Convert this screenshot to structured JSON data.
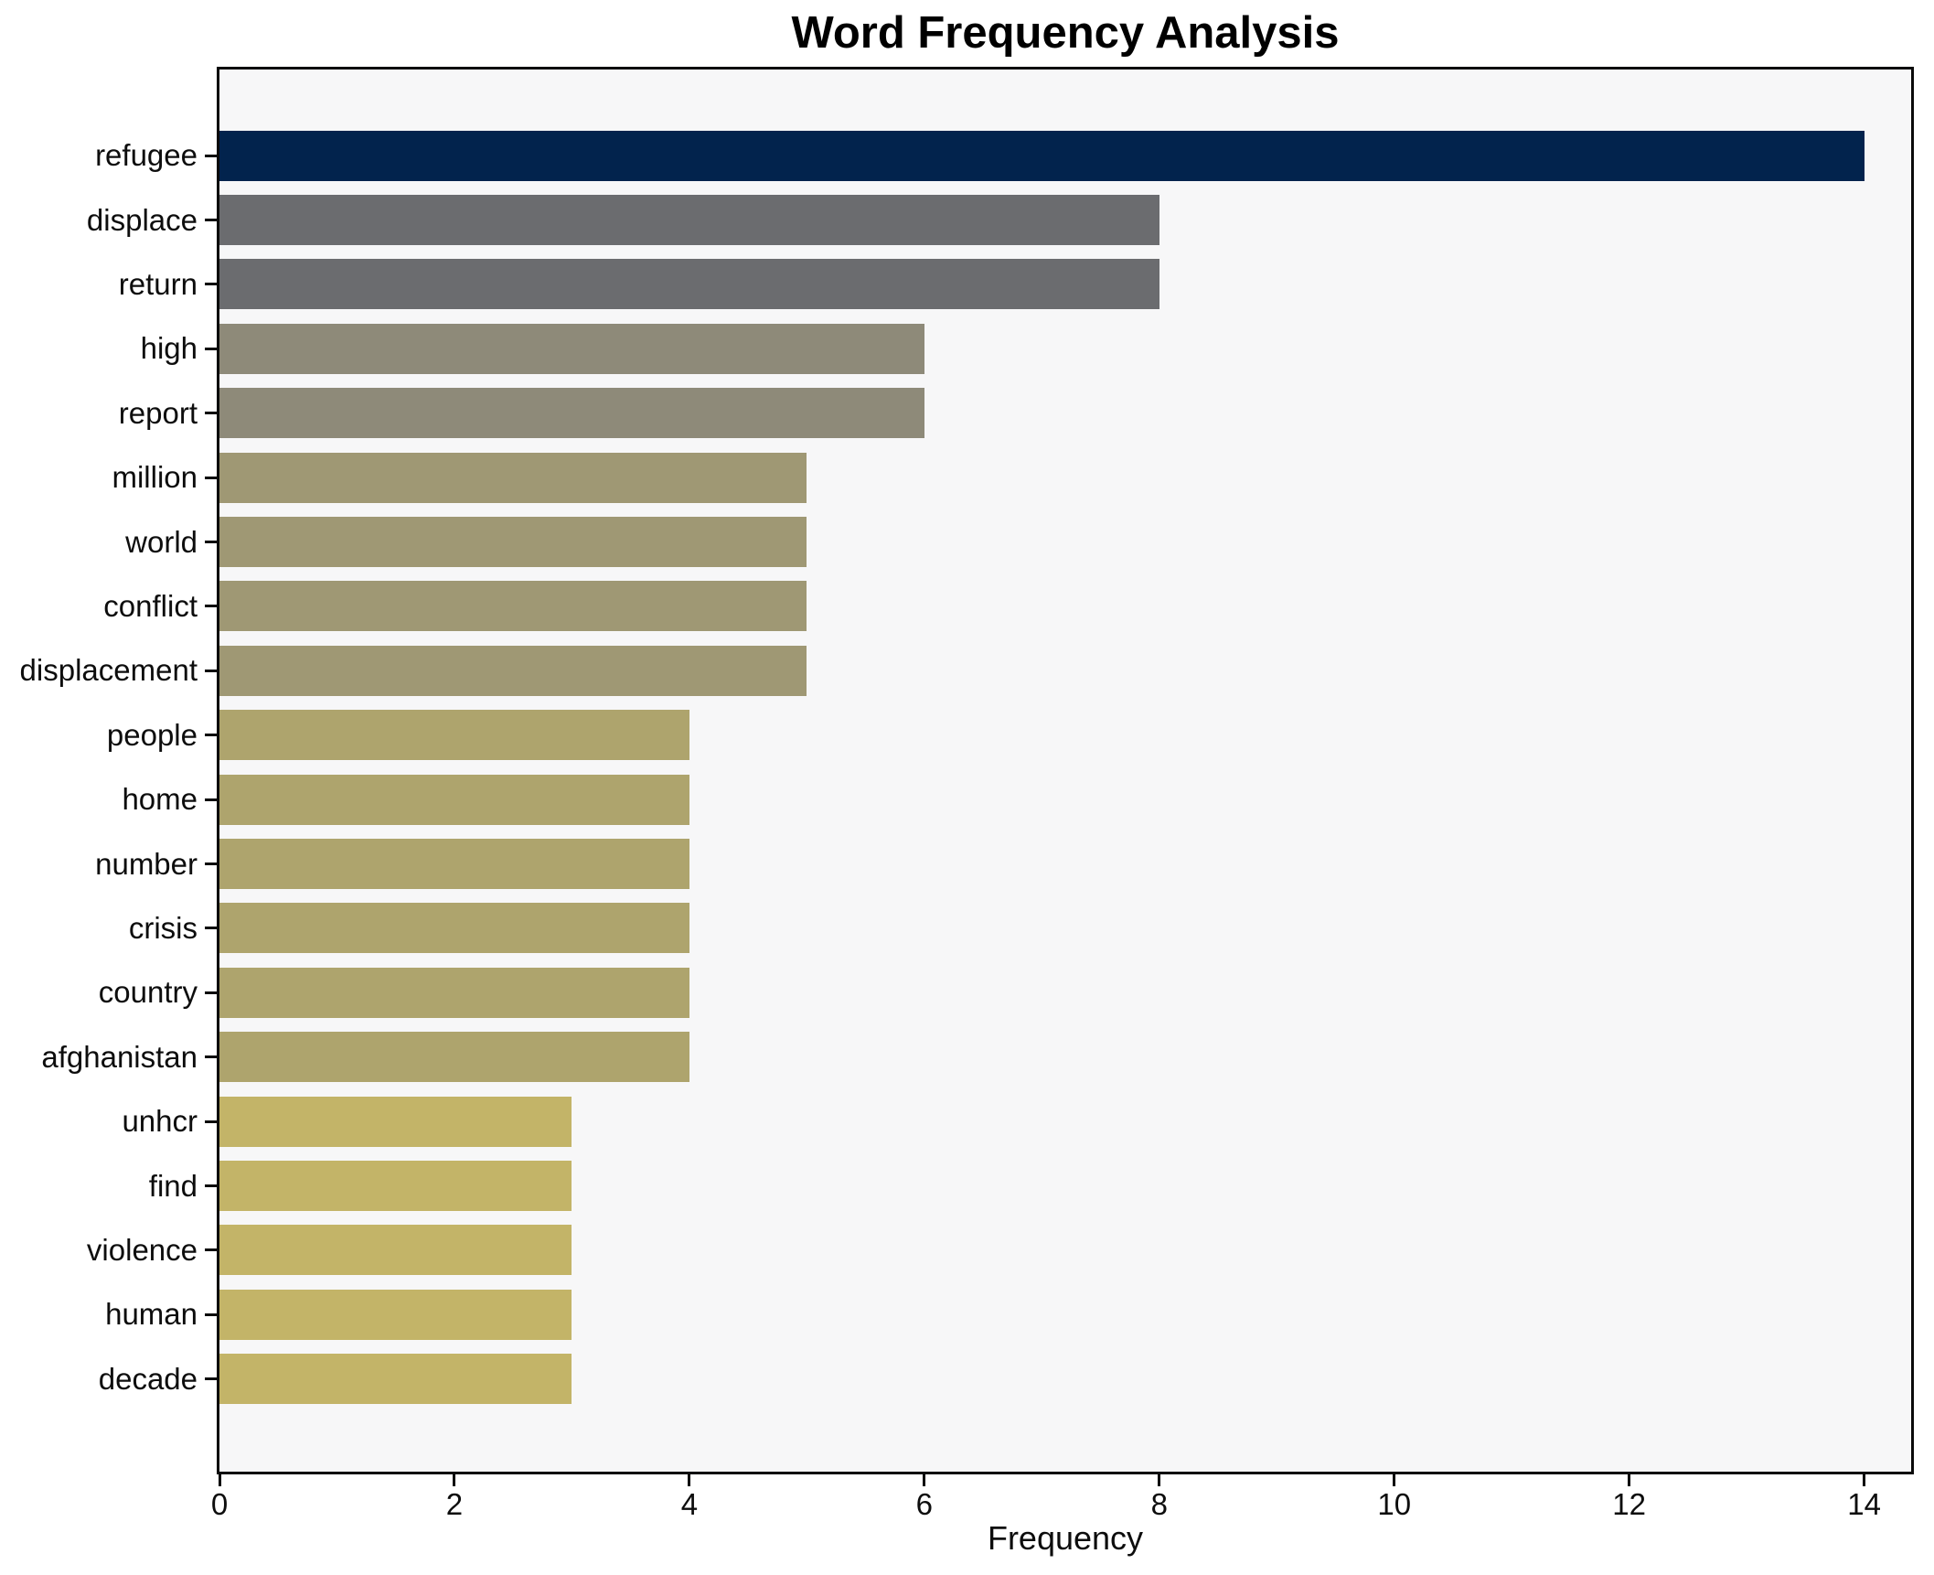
{
  "chart_data": {
    "type": "bar",
    "orientation": "horizontal",
    "title": "Word Frequency Analysis",
    "xlabel": "Frequency",
    "ylabel": "",
    "categories": [
      "refugee",
      "displace",
      "return",
      "high",
      "report",
      "million",
      "world",
      "conflict",
      "displacement",
      "people",
      "home",
      "number",
      "crisis",
      "country",
      "afghanistan",
      "unhcr",
      "find",
      "violence",
      "human",
      "decade"
    ],
    "values": [
      14,
      8,
      8,
      6,
      6,
      5,
      5,
      5,
      5,
      4,
      4,
      4,
      4,
      4,
      4,
      3,
      3,
      3,
      3,
      3
    ],
    "bar_colors": [
      "#02234d",
      "#6b6c6f",
      "#6b6c6f",
      "#8e8a79",
      "#8e8a79",
      "#9f9874",
      "#9f9874",
      "#9f9874",
      "#9f9874",
      "#aea46d",
      "#aea46d",
      "#aea46d",
      "#aea46d",
      "#aea46d",
      "#aea46d",
      "#c3b468",
      "#c3b468",
      "#c3b468",
      "#c3b468",
      "#c3b468"
    ],
    "xticks": [
      0,
      2,
      4,
      6,
      8,
      10,
      12,
      14
    ],
    "xlim": [
      0,
      14.4
    ],
    "grid": false,
    "legend": "none",
    "colors": {
      "figure_bg": "#ffffff",
      "plot_bg": "#f7f7f8",
      "spine": "#0a0a0a",
      "text": "#000000"
    }
  }
}
